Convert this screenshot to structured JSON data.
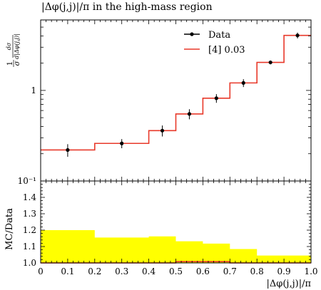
{
  "chart_data": [
    {
      "type": "line",
      "title": "|Δφ(j,j)|/π in the high-mass region",
      "ylabel_num": "1",
      "ylabel_den": "σ",
      "ylabel_frac_num": "dσ",
      "ylabel_frac_den": "d|Δφ(j,j)|",
      "yscale": "log",
      "ylim": [
        0.1,
        6.0
      ],
      "yticks": [
        {
          "value": 0.1,
          "label": "10⁻¹"
        },
        {
          "value": 1,
          "label": "1"
        }
      ],
      "legend_position": "top-right",
      "bin_edges": [
        0.0,
        0.2,
        0.4,
        0.5,
        0.6,
        0.7,
        0.8,
        0.9,
        1.0
      ],
      "series": [
        {
          "name": "Data",
          "style": "points",
          "color": "#000000",
          "x": [
            0.1,
            0.3,
            0.45,
            0.55,
            0.65,
            0.75,
            0.85,
            0.95
          ],
          "y": [
            0.22,
            0.26,
            0.36,
            0.55,
            0.82,
            1.21,
            2.04,
            4.05
          ],
          "yerr": [
            0.035,
            0.03,
            0.05,
            0.07,
            0.09,
            0.12,
            0.1,
            0.3
          ]
        },
        {
          "name": "[4] 0.03",
          "style": "step",
          "color": "#e8392a",
          "values": [
            0.22,
            0.26,
            0.36,
            0.55,
            0.82,
            1.21,
            2.04,
            4.05
          ]
        }
      ]
    },
    {
      "type": "area",
      "ylabel": "MC/Data",
      "xlabel": "|Δφ(j,j)|/π",
      "xlim": [
        0.0,
        1.0
      ],
      "ylim": [
        1.0,
        1.5
      ],
      "xticks": [
        "0",
        "0.1",
        "0.2",
        "0.3",
        "0.4",
        "0.5",
        "0.6",
        "0.7",
        "0.8",
        "0.9",
        "1.0"
      ],
      "yticks": [
        "1.0",
        "1.1",
        "1.2",
        "1.3",
        "1.4"
      ],
      "bin_edges": [
        0.0,
        0.2,
        0.4,
        0.5,
        0.6,
        0.7,
        0.8,
        0.9,
        1.0
      ],
      "band_upper": [
        1.2,
        1.155,
        1.162,
        1.132,
        1.118,
        1.085,
        1.045,
        1.045
      ],
      "band_color": "#ffff00",
      "ratio": [
        1.0,
        1.0,
        1.0,
        1.008,
        1.008,
        1.0,
        1.0,
        1.0
      ],
      "ratio_color": "#e8392a"
    }
  ]
}
